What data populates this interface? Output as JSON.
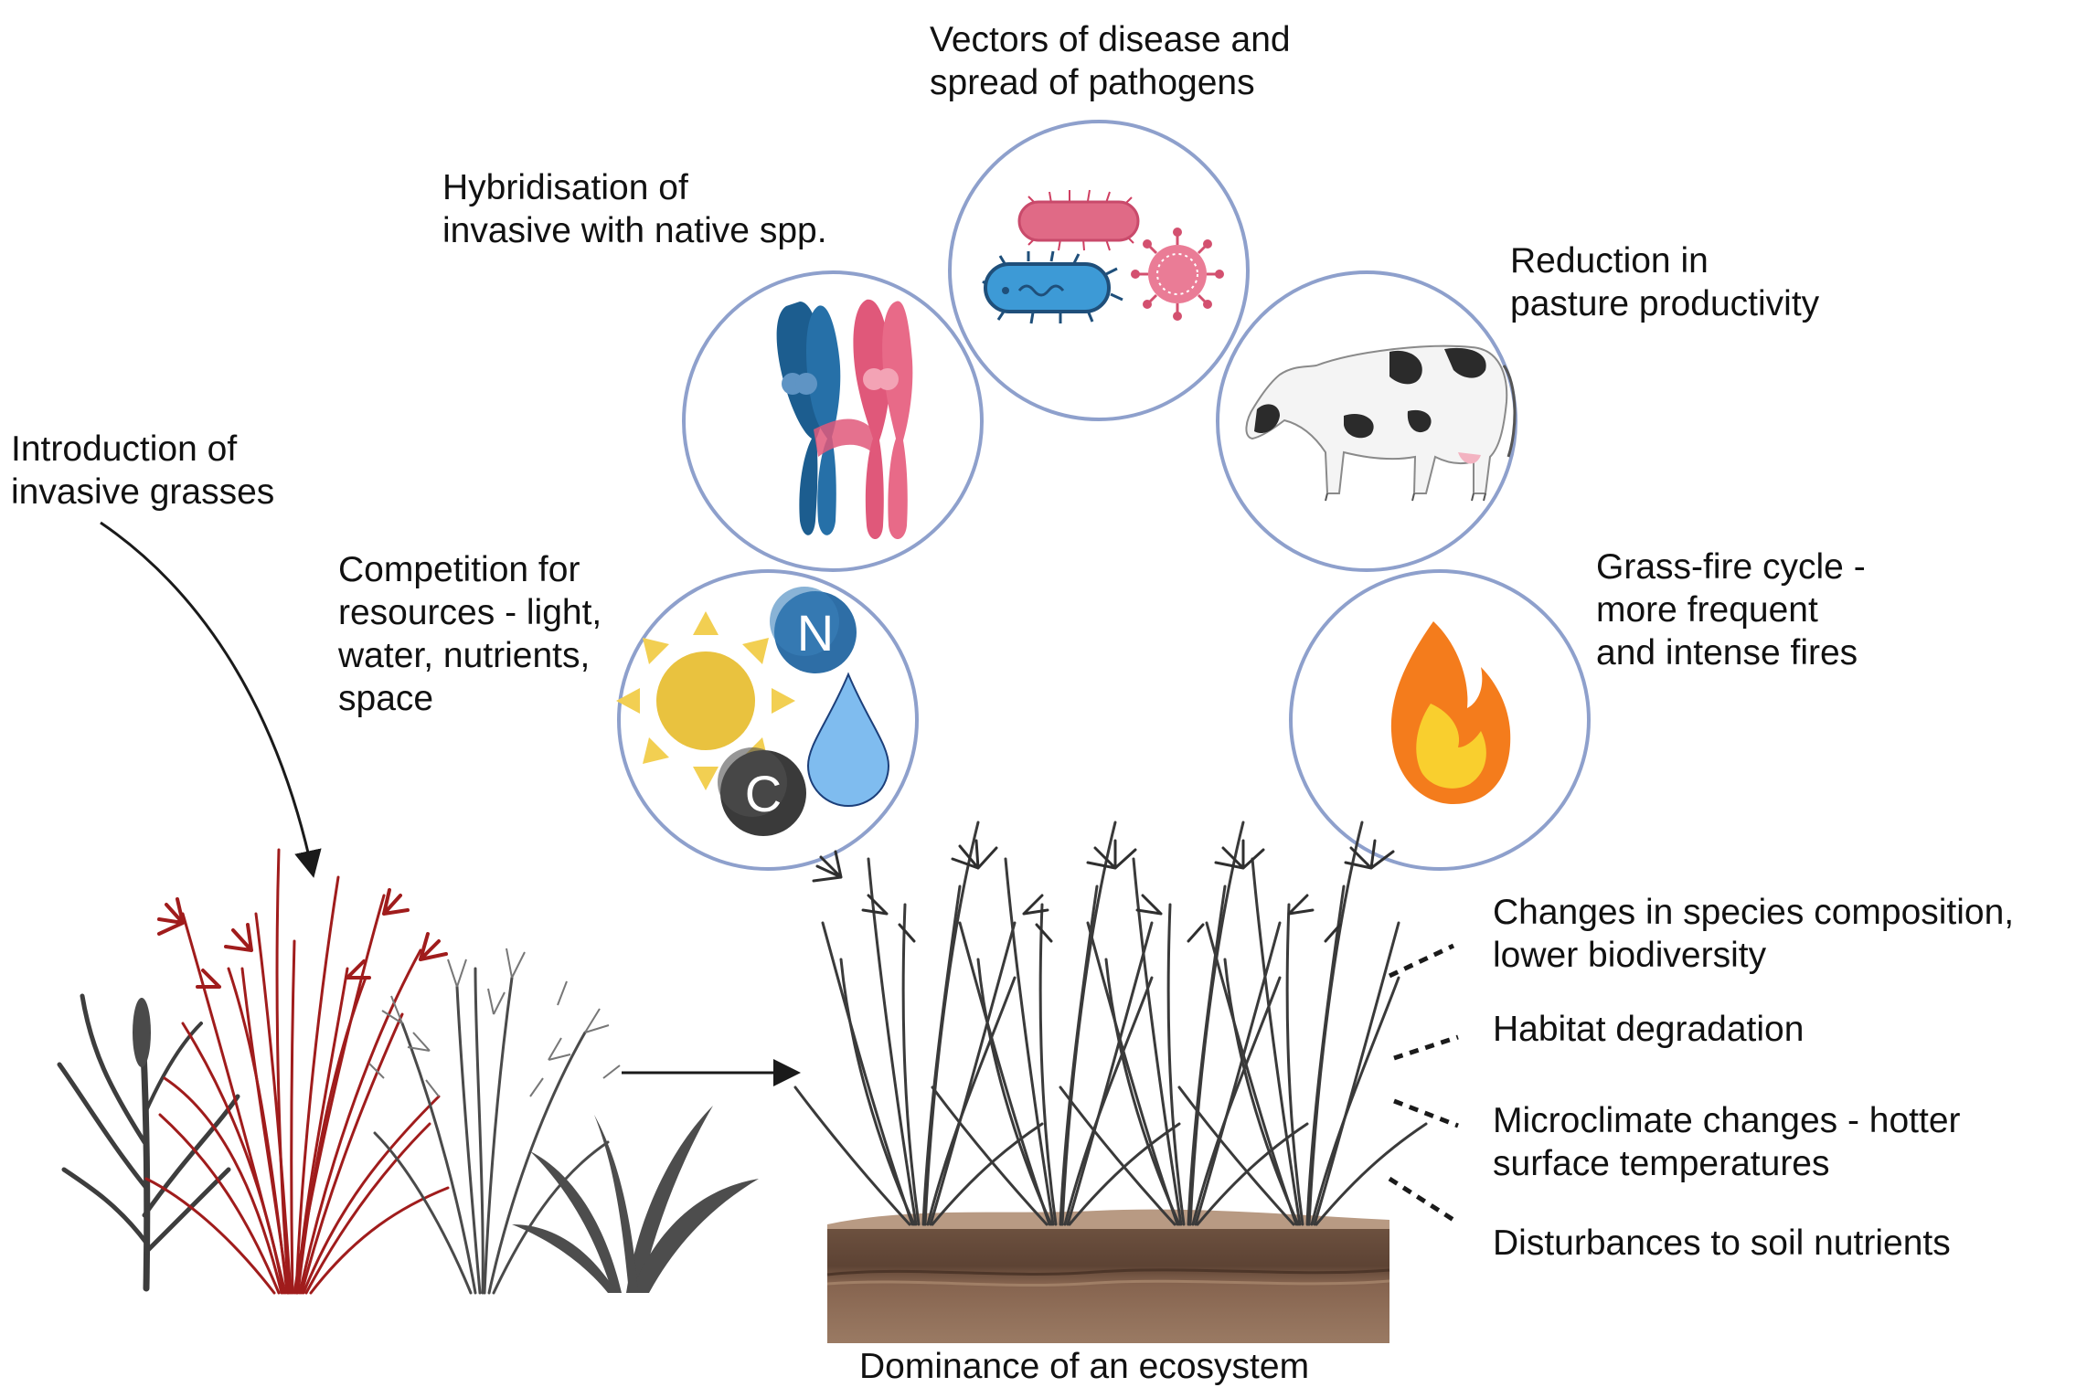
{
  "colors": {
    "circle_stroke": "#8ea0cc",
    "invasive_grass": "#a01c1c",
    "dark_grass": "#3d3d3d",
    "soil_top": "#7a5a45",
    "soil_bottom": "#8e6b54",
    "sun": "#e9c23f",
    "water": "#7fbcef",
    "nitrogen": "#2e6ea6",
    "carbon": "#3a3a3a",
    "flame_outer": "#f47c1c",
    "flame_inner": "#f9cf2e",
    "chromosome_blue": "#1c5d8f",
    "chromosome_pink": "#e0587a"
  },
  "labels": {
    "introduction": [
      "Introduction of",
      "invasive grasses"
    ],
    "competition": [
      "Competition for",
      "resources - light,",
      "water, nutrients,",
      "space"
    ],
    "hybridisation": [
      "Hybridisation of",
      "invasive with native spp."
    ],
    "vectors": [
      "Vectors of disease and",
      "spread of pathogens"
    ],
    "pasture": [
      "Reduction in",
      "pasture productivity"
    ],
    "fire": [
      "Grass-fire cycle -",
      "more frequent",
      "and intense fires"
    ],
    "species": [
      "Changes in species composition,",
      "lower biodiversity"
    ],
    "habitat": [
      "Habitat degradation"
    ],
    "microclimate": [
      "Microclimate changes - hotter",
      "surface temperatures"
    ],
    "soil": [
      "Disturbances to soil nutrients"
    ],
    "dominance": [
      "Dominance of an ecosystem"
    ]
  },
  "icons": {
    "nitrogen_letter": "N",
    "carbon_letter": "C",
    "sun": "sun-icon",
    "water": "water-drop-icon",
    "chromosomes": "chromosome-icon",
    "pathogens": "bacteria-icon",
    "cow": "cow-icon",
    "fire": "flame-icon",
    "grass_mix": "grass-group-icon",
    "dominant_grass": "tussock-grass-icon",
    "soil": "soil-block-icon"
  }
}
